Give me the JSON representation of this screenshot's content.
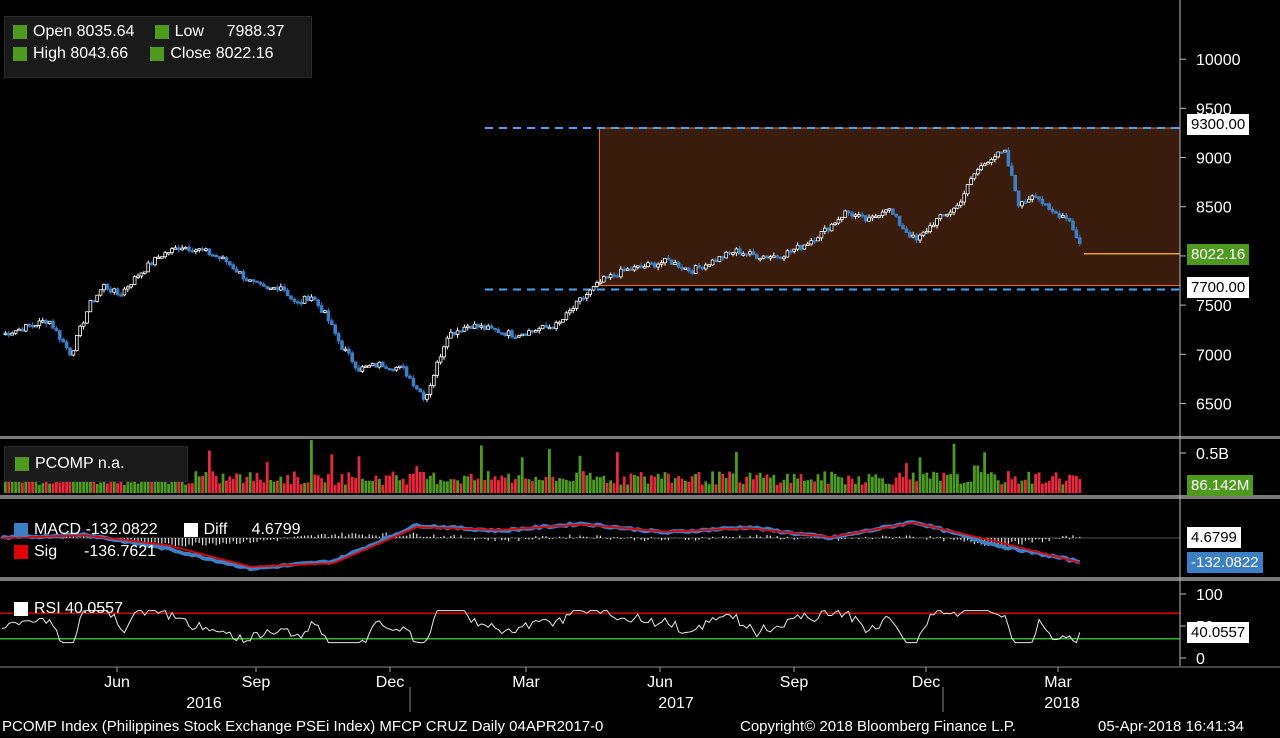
{
  "price_legend": {
    "open_label": "Open",
    "open_value": "8035.64",
    "high_label": "High",
    "high_value": "8043.66",
    "low_label": "Low",
    "low_value": "7988.37",
    "close_label": "Close",
    "close_value": "8022.16"
  },
  "volume_legend": {
    "label": "PCOMP n.a."
  },
  "macd_legend": {
    "macd_label": "MACD",
    "macd_value": "-132.0822",
    "diff_label": "Diff",
    "diff_value": "4.6799",
    "sig_label": "Sig",
    "sig_value": "-136.7621"
  },
  "rsi_legend": {
    "label": "RSI",
    "value": "40.0557"
  },
  "tags": {
    "upper": "9300.00",
    "close": "8022.16",
    "lower": "7700.00",
    "volume": "86.142M",
    "diff": "4.6799",
    "macd": "-132.0822",
    "rsi": "40.0557"
  },
  "footer": {
    "left": "PCOMP Index (Philippines Stock Exchange PSEi Index) MFCP CRUZ  Daily 04APR2017-0",
    "center": "Copyright© 2018 Bloomberg Finance L.P.",
    "right": "05-Apr-2018 16:41:34"
  },
  "colors": {
    "up_candle": "#ffffff",
    "down_candle": "#3d7fc4",
    "channel_fill": "#3a1c0c",
    "channel_border": "#e8742a",
    "dashed_line": "#4aa3ee",
    "vol_up": "#4d9a1e",
    "vol_down": "#e8283c",
    "macd": "#3d7fc4",
    "sig": "#e00000",
    "rsi_upper": "#d40000",
    "rsi_lower": "#2fb82f"
  },
  "chart_data": [
    {
      "type": "candlestick",
      "name": "PCOMP Index",
      "ylim": [
        6200,
        10500
      ],
      "yticks": [
        6500,
        7000,
        7500,
        8000,
        8500,
        9000,
        9500,
        10000
      ],
      "x_month_labels": [
        "Jun",
        "Sep",
        "Dec",
        "Mar",
        "Jun",
        "Sep",
        "Dec",
        "Mar"
      ],
      "x_year_labels": [
        "2016",
        "2017",
        "2018"
      ],
      "channel": {
        "upper": 9300,
        "lower": 7700,
        "start": "Apr 2017"
      },
      "close_path": [
        {
          "x": "Mar 2016",
          "y": 7200
        },
        {
          "x": "Apr 2016",
          "y": 7350
        },
        {
          "x": "Apr 2016",
          "y": 7000
        },
        {
          "x": "May 2016",
          "y": 7500
        },
        {
          "x": "May 2016",
          "y": 7700
        },
        {
          "x": "May 2016",
          "y": 7600
        },
        {
          "x": "Jun 2016",
          "y": 7800
        },
        {
          "x": "Jun 2016",
          "y": 8000
        },
        {
          "x": "Jul 2016",
          "y": 8100
        },
        {
          "x": "Jul 2016",
          "y": 8050
        },
        {
          "x": "Aug 2016",
          "y": 7950
        },
        {
          "x": "Aug 2016",
          "y": 7750
        },
        {
          "x": "Sep 2016",
          "y": 7650
        },
        {
          "x": "Sep 2016",
          "y": 7700
        },
        {
          "x": "Sep 2016",
          "y": 7500
        },
        {
          "x": "Oct 2016",
          "y": 7600
        },
        {
          "x": "Oct 2016",
          "y": 7400
        },
        {
          "x": "Oct 2016",
          "y": 7100
        },
        {
          "x": "Nov 2016",
          "y": 6850
        },
        {
          "x": "Nov 2016",
          "y": 6900
        },
        {
          "x": "Dec 2016",
          "y": 6850
        },
        {
          "x": "Dec 2016",
          "y": 6550
        },
        {
          "x": "Jan 2017",
          "y": 7200
        },
        {
          "x": "Jan 2017",
          "y": 7300
        },
        {
          "x": "Feb 2017",
          "y": 7250
        },
        {
          "x": "Feb 2017",
          "y": 7200
        },
        {
          "x": "Mar 2017",
          "y": 7250
        },
        {
          "x": "Mar 2017",
          "y": 7300
        },
        {
          "x": "Apr 2017",
          "y": 7550
        },
        {
          "x": "Apr 2017",
          "y": 7750
        },
        {
          "x": "May 2017",
          "y": 7850
        },
        {
          "x": "May 2017",
          "y": 7900
        },
        {
          "x": "Jun 2017",
          "y": 7950
        },
        {
          "x": "Jun 2017",
          "y": 7850
        },
        {
          "x": "Jul 2017",
          "y": 7950
        },
        {
          "x": "Jul 2017",
          "y": 8050
        },
        {
          "x": "Aug 2017",
          "y": 8000
        },
        {
          "x": "Aug 2017",
          "y": 8000
        },
        {
          "x": "Sep 2017",
          "y": 8100
        },
        {
          "x": "Sep 2017",
          "y": 8250
        },
        {
          "x": "Oct 2017",
          "y": 8450
        },
        {
          "x": "Oct 2017",
          "y": 8350
        },
        {
          "x": "Nov 2017",
          "y": 8500
        },
        {
          "x": "Nov 2017",
          "y": 8300
        },
        {
          "x": "Nov 2017",
          "y": 8150
        },
        {
          "x": "Dec 2017",
          "y": 8350
        },
        {
          "x": "Dec 2017",
          "y": 8500
        },
        {
          "x": "Jan 2018",
          "y": 8850
        },
        {
          "x": "Jan 2018",
          "y": 9000
        },
        {
          "x": "Jan 2018",
          "y": 9050
        },
        {
          "x": "Feb 2018",
          "y": 8500
        },
        {
          "x": "Feb 2018",
          "y": 8650
        },
        {
          "x": "Feb 2018",
          "y": 8450
        },
        {
          "x": "Mar 2018",
          "y": 8400
        },
        {
          "x": "Mar 2018",
          "y": 7900
        },
        {
          "x": "Apr 2018",
          "y": 8022.16
        }
      ]
    },
    {
      "type": "bar",
      "name": "PCOMP Volume",
      "yticks_label": [
        "0.5B"
      ],
      "last_value": "86.142M"
    },
    {
      "type": "line",
      "name": "MACD",
      "series": [
        {
          "name": "MACD",
          "values": [
            0,
            20,
            -60,
            -170,
            -130,
            70,
            40,
            80,
            30,
            60,
            0,
            90,
            -40,
            -132.0822
          ]
        },
        {
          "name": "Sig",
          "values": [
            0,
            15,
            -40,
            -160,
            -140,
            60,
            45,
            75,
            35,
            55,
            5,
            85,
            -20,
            -136.7621
          ]
        }
      ]
    },
    {
      "type": "line",
      "name": "RSI",
      "ylim": [
        0,
        100
      ],
      "yticks": [
        0,
        50,
        100
      ],
      "bands": [
        70,
        30
      ],
      "last_value": 40.0557
    }
  ]
}
